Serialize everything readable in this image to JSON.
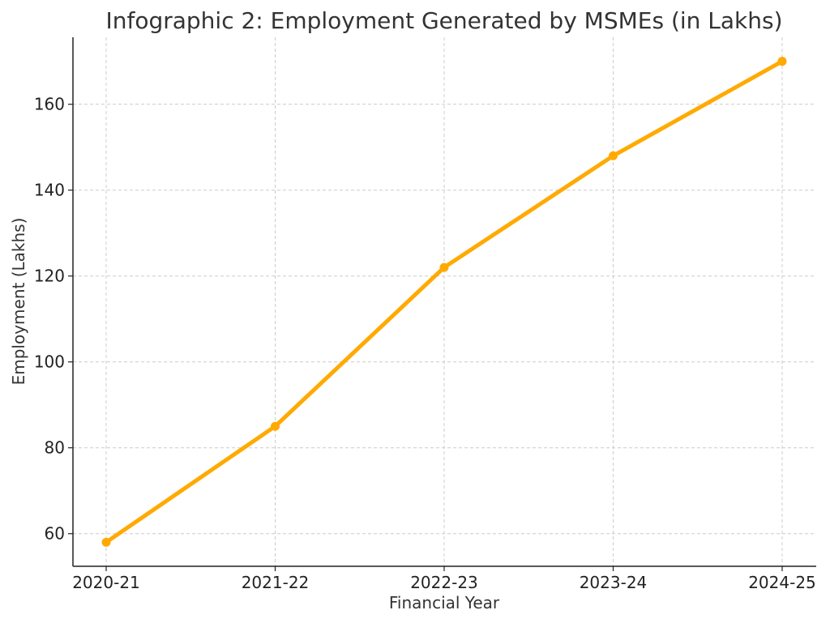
{
  "chart_data": {
    "type": "line",
    "title": "Infographic 2: Employment Generated by MSMEs (in Lakhs)",
    "xlabel": "Financial Year",
    "ylabel": "Employment (Lakhs)",
    "categories": [
      "2020-21",
      "2021-22",
      "2022-23",
      "2023-24",
      "2024-25"
    ],
    "series": [
      {
        "values": [
          58,
          85,
          122,
          148,
          170
        ]
      }
    ],
    "ylim": [
      52.4,
      175.6
    ],
    "yticks": [
      60,
      80,
      100,
      120,
      140,
      160
    ],
    "grid": true,
    "colors": {
      "line": "#FFAA00",
      "axis": "#222222",
      "grid": "#cccccc",
      "text": "#333333"
    }
  }
}
